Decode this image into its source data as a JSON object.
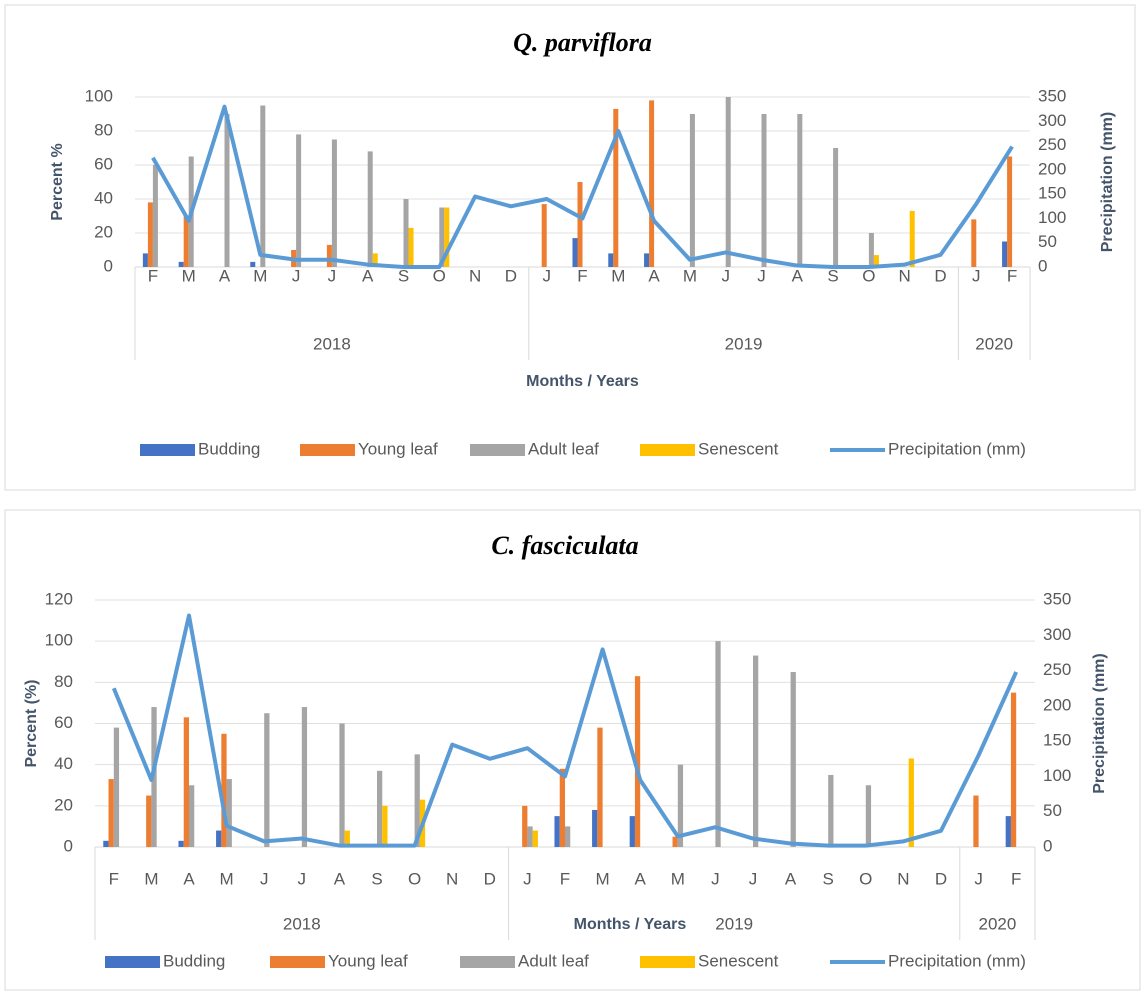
{
  "chart_data": [
    {
      "type": "bar",
      "title": "Q. parviflora",
      "x_title": "Months / Years",
      "y_title": "Percent %",
      "y2_title": "Precipitation (mm)",
      "categories": [
        "F",
        "M",
        "A",
        "M",
        "J",
        "J",
        "A",
        "S",
        "O",
        "N",
        "D",
        "J",
        "F",
        "M",
        "A",
        "M",
        "J",
        "J",
        "A",
        "S",
        "O",
        "N",
        "D",
        "J",
        "F"
      ],
      "x_groups": [
        {
          "label": "2018",
          "count": 11
        },
        {
          "label": "2019",
          "count": 12
        },
        {
          "label": "2020",
          "count": 2
        }
      ],
      "ylim": [
        0,
        100
      ],
      "yticks": [
        0,
        20,
        40,
        60,
        80,
        100
      ],
      "y2lim": [
        0,
        350
      ],
      "y2ticks": [
        0,
        50,
        100,
        150,
        200,
        250,
        300,
        350
      ],
      "grid": true,
      "series": [
        {
          "name": "Budding",
          "color": "#4472c4",
          "values": [
            8,
            3,
            null,
            3,
            null,
            null,
            null,
            null,
            null,
            null,
            null,
            null,
            17,
            8,
            8,
            null,
            null,
            null,
            null,
            null,
            null,
            null,
            null,
            null,
            15
          ]
        },
        {
          "name": "Young leaf",
          "color": "#ed7d31",
          "values": [
            38,
            30,
            null,
            null,
            10,
            13,
            null,
            null,
            null,
            null,
            null,
            37,
            50,
            93,
            98,
            null,
            null,
            null,
            null,
            null,
            null,
            null,
            null,
            28,
            65
          ]
        },
        {
          "name": "Adult leaf",
          "color": "#a5a5a5",
          "values": [
            60,
            65,
            90,
            95,
            78,
            75,
            68,
            40,
            35,
            null,
            null,
            null,
            null,
            null,
            null,
            90,
            100,
            90,
            90,
            70,
            20,
            null,
            null,
            null,
            null
          ]
        },
        {
          "name": "Senescent",
          "color": "#ffc000",
          "values": [
            null,
            null,
            null,
            null,
            null,
            null,
            8,
            23,
            35,
            null,
            null,
            null,
            null,
            null,
            null,
            null,
            null,
            null,
            null,
            null,
            7,
            33,
            null,
            null,
            null
          ]
        },
        {
          "name": "Precipitation (mm)",
          "color": "#5b9bd5",
          "type": "line",
          "axis": "y2",
          "values": [
            225,
            95,
            330,
            25,
            15,
            15,
            5,
            0,
            0,
            145,
            125,
            140,
            100,
            280,
            95,
            15,
            30,
            15,
            3,
            0,
            0,
            5,
            25,
            130,
            248
          ]
        }
      ]
    },
    {
      "type": "bar",
      "title": "C. fasciculata",
      "x_title": "Months / Years",
      "y_title": "Percent (%)",
      "y2_title": "Precipitation (mm)",
      "categories": [
        "F",
        "M",
        "A",
        "M",
        "J",
        "J",
        "A",
        "S",
        "O",
        "N",
        "D",
        "J",
        "F",
        "M",
        "A",
        "M",
        "J",
        "J",
        "A",
        "S",
        "O",
        "N",
        "D",
        "J",
        "F"
      ],
      "x_groups": [
        {
          "label": "2018",
          "count": 11
        },
        {
          "label": "2019",
          "count": 12
        },
        {
          "label": "2020",
          "count": 2
        }
      ],
      "ylim": [
        0,
        120
      ],
      "yticks": [
        0,
        20,
        40,
        60,
        80,
        100,
        120
      ],
      "y2lim": [
        0,
        350
      ],
      "y2ticks": [
        0,
        50,
        100,
        150,
        200,
        250,
        300,
        350
      ],
      "grid": true,
      "series": [
        {
          "name": "Budding",
          "color": "#4472c4",
          "values": [
            3,
            null,
            3,
            8,
            null,
            null,
            null,
            null,
            null,
            null,
            null,
            null,
            15,
            18,
            15,
            null,
            null,
            null,
            null,
            null,
            null,
            null,
            null,
            null,
            15
          ]
        },
        {
          "name": "Young leaf",
          "color": "#ed7d31",
          "values": [
            33,
            25,
            63,
            55,
            null,
            null,
            null,
            null,
            null,
            null,
            null,
            20,
            38,
            58,
            83,
            5,
            null,
            null,
            null,
            null,
            null,
            null,
            null,
            25,
            75
          ]
        },
        {
          "name": "Adult leaf",
          "color": "#a5a5a5",
          "values": [
            58,
            68,
            30,
            33,
            65,
            68,
            60,
            37,
            45,
            null,
            null,
            10,
            10,
            null,
            null,
            40,
            100,
            93,
            85,
            35,
            30,
            null,
            null,
            null,
            null
          ]
        },
        {
          "name": "Senescent",
          "color": "#ffc000",
          "values": [
            null,
            null,
            null,
            null,
            null,
            null,
            8,
            20,
            23,
            null,
            null,
            8,
            null,
            null,
            null,
            null,
            null,
            null,
            null,
            null,
            null,
            43,
            null,
            null,
            null
          ]
        },
        {
          "name": "Precipitation (mm)",
          "color": "#5b9bd5",
          "type": "line",
          "axis": "y2",
          "values": [
            225,
            95,
            328,
            30,
            8,
            12,
            2,
            2,
            2,
            145,
            125,
            140,
            100,
            280,
            95,
            15,
            28,
            12,
            5,
            2,
            2,
            8,
            23,
            130,
            248
          ]
        }
      ]
    }
  ]
}
